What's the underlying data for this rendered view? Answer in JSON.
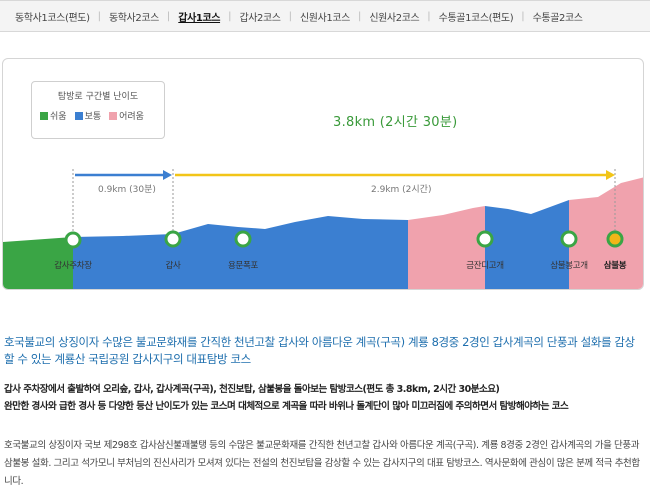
{
  "tabs": [
    {
      "label": "동학사1코스(편도)",
      "active": false
    },
    {
      "label": "동학사2코스",
      "active": false
    },
    {
      "label": "갑사1코스",
      "active": true
    },
    {
      "label": "갑사2코스",
      "active": false
    },
    {
      "label": "신원사1코스",
      "active": false
    },
    {
      "label": "신원사2코스",
      "active": false
    },
    {
      "label": "수통골1코스(편도)",
      "active": false
    },
    {
      "label": "수통골2코스",
      "active": false
    }
  ],
  "legend": {
    "title": "탐방로 구간별 난이도",
    "items": [
      {
        "label": "쉬움",
        "color": "#3aa545"
      },
      {
        "label": "보통",
        "color": "#3b7fd1"
      },
      {
        "label": "어려움",
        "color": "#f0a2ad"
      }
    ]
  },
  "total": "3.8km (2시간 30분)",
  "segments": [
    {
      "distance": "0.9km (30분)",
      "arrow_color": "#3b7fd1"
    },
    {
      "distance": "2.9km (2시간)",
      "arrow_color": "#f2c518"
    }
  ],
  "waypoints": [
    {
      "label": "갑사주차장",
      "bold": false,
      "summit": false
    },
    {
      "label": "갑사",
      "bold": false,
      "summit": false
    },
    {
      "label": "용문폭포",
      "bold": false,
      "summit": false
    },
    {
      "label": "금잔디고개",
      "bold": false,
      "summit": false
    },
    {
      "label": "삼불봉고개",
      "bold": false,
      "summit": false
    },
    {
      "label": "삼불봉",
      "bold": true,
      "summit": true
    }
  ],
  "colors": {
    "easy": "#3aa545",
    "normal": "#3b7fd1",
    "hard": "#f0a2ad",
    "node_ring": "#3aa545",
    "summit_fill": "#f2b619",
    "headline": "#1f6fae",
    "total": "#3a9a3a"
  },
  "headline": "호국불교의 상징이자 수많은 불교문화재를 간직한 천년고찰 갑사와 아름다운 계곡(구곡) 계룡 8경중 2경인 갑사계곡의 단풍과 설화를 감상할 수 있는 계룡산 국립공원 갑사지구의 대표탐방 코스",
  "summary": [
    "갑사 주차장에서 출발하여 오리숲, 갑사, 갑사계곡(구곡), 천진보탑, 삼불봉을 돌아보는 탐방코스(편도 총 3.8km, 2시간 30분소요)",
    "완만한 경사와 급한 경사 등 다양한 등산 난이도가 있는 코스며 대체적으로 계곡을 따라 바위나 돌계단이 많아 미끄러짐에 주의하면서 탐방해야하는 코스"
  ],
  "description": "호국불교의 상징이자 국보 제298호 갑사삼신불괘불탱 등의 수많은 불교문화재를 간직한 천년고찰 갑사와 아름다운 계곡(구곡). 계룡 8경중 2경인 갑사계곡의 가을 단풍과 삼불봉 설화. 그리고 석가모니 부처님의 진신사리가 모셔져 있다는 전설의 천진보탑을 감상할 수 있는 갑사지구의 대표 탐방코스. 역사문화에 관심이 많은 분께 적극 추천합니다."
}
